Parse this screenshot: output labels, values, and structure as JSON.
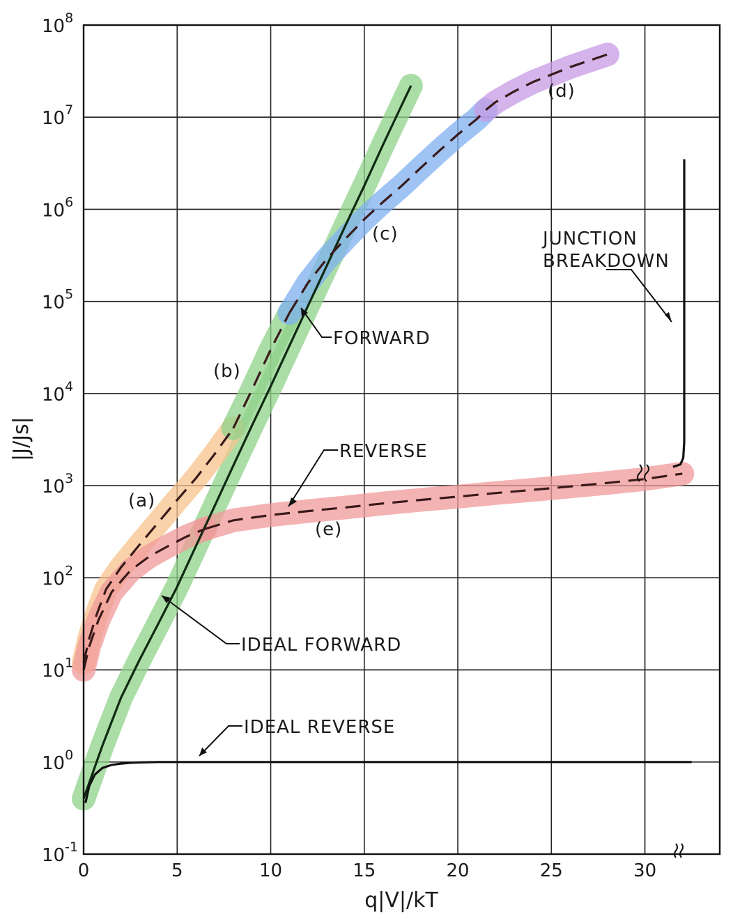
{
  "chart_data": {
    "type": "line",
    "title": "",
    "xlabel": "q|V|/kT",
    "ylabel": "|J/Js|",
    "xlim": [
      0,
      34
    ],
    "ylim": [
      0.1,
      100000000
    ],
    "yscale": "log",
    "grid": true,
    "x_ticks": [
      "0",
      "5",
      "10",
      "15",
      "20",
      "25",
      "30"
    ],
    "y_ticks": [
      {
        "base": "10",
        "exp": "-1",
        "value": 0.1
      },
      {
        "base": "10",
        "exp": "0",
        "value": 1
      },
      {
        "base": "10",
        "exp": "1",
        "value": 10
      },
      {
        "base": "10",
        "exp": "2",
        "value": 100
      },
      {
        "base": "10",
        "exp": "3",
        "value": 1000
      },
      {
        "base": "10",
        "exp": "4",
        "value": 10000
      },
      {
        "base": "10",
        "exp": "5",
        "value": 100000
      },
      {
        "base": "10",
        "exp": "6",
        "value": 1000000
      },
      {
        "base": "10",
        "exp": "7",
        "value": 10000000
      },
      {
        "base": "10",
        "exp": "8",
        "value": 100000000
      }
    ],
    "series": [
      {
        "key": "ideal_forward",
        "name": "IDEAL FORWARD",
        "style": "solid",
        "highlight": "#8fd18a",
        "x": [
          0,
          1,
          2,
          3,
          4,
          5,
          6,
          7,
          8,
          9,
          10,
          11,
          12,
          13,
          14,
          15,
          16,
          17,
          17.5
        ],
        "y": [
          0.4,
          1.5,
          5,
          13,
          32,
          80,
          220,
          600,
          1650,
          4500,
          12000,
          33000,
          90000,
          245000,
          670000,
          1800000,
          5000000,
          13500000,
          22000000
        ]
      },
      {
        "key": "a",
        "name": "(a)",
        "style": "dashed",
        "highlight": "#f7c38d",
        "x": [
          0,
          0.3,
          0.7,
          1.2,
          2,
          3,
          4,
          5,
          6,
          7,
          8
        ],
        "y": [
          12,
          22,
          40,
          75,
          130,
          230,
          400,
          700,
          1200,
          2200,
          4200
        ]
      },
      {
        "key": "b",
        "name": "(b)",
        "style": "dashed",
        "highlight": "#8fd18a",
        "x": [
          8,
          9,
          10,
          11
        ],
        "y": [
          4200,
          11000,
          30000,
          75000
        ]
      },
      {
        "key": "c",
        "name": "(c)",
        "style": "dashed",
        "highlight": "#7fb0f0",
        "x": [
          11,
          12,
          13,
          14,
          15,
          16,
          17,
          18,
          19,
          20,
          21,
          21.5
        ],
        "y": [
          75000,
          160000,
          290000,
          480000,
          780000,
          1200000,
          1800000,
          2800000,
          4300000,
          6500000,
          9500000,
          12000000
        ]
      },
      {
        "key": "d",
        "name": "(d)",
        "style": "dashed",
        "highlight": "#c79be6",
        "x": [
          21.5,
          22,
          23,
          24,
          25,
          26,
          27,
          28
        ],
        "y": [
          12000000,
          14500000,
          19000000,
          24000000,
          29000000,
          35000000,
          41000000,
          48000000
        ]
      },
      {
        "key": "e_low",
        "name": "(e)",
        "style": "dashed",
        "highlight": "#f09a9a",
        "x": [
          0,
          0.3,
          0.8,
          1.5,
          2.5,
          3.5,
          4.5,
          5.5,
          6.5
        ],
        "y": [
          10,
          18,
          35,
          70,
          120,
          170,
          220,
          280,
          340
        ]
      },
      {
        "key": "e",
        "name": "(e)",
        "style": "dashed",
        "highlight": "#f09a9a",
        "x": [
          6.5,
          8,
          10,
          12,
          14,
          16,
          18,
          20,
          22,
          24,
          26,
          28,
          30,
          32
        ],
        "y": [
          340,
          420,
          480,
          530,
          580,
          640,
          700,
          760,
          830,
          900,
          980,
          1070,
          1180,
          1350
        ]
      },
      {
        "key": "ideal_reverse",
        "name": "IDEAL REVERSE",
        "style": "solid",
        "highlight": "",
        "x": [
          0.1,
          0.3,
          0.6,
          1,
          1.5,
          2,
          2.5,
          3,
          4,
          6,
          10,
          15,
          20,
          25,
          30,
          32.5
        ],
        "y": [
          0.36,
          0.55,
          0.73,
          0.86,
          0.93,
          0.96,
          0.98,
          0.99,
          1,
          1,
          1,
          1,
          1,
          1,
          1,
          1
        ]
      },
      {
        "key": "breakdown",
        "name": "JUNCTION BREAKDOWN",
        "style": "solid",
        "highlight": "",
        "x": [
          31.5,
          31.9,
          32.05,
          32.1,
          32.1
        ],
        "y": [
          1600,
          1700,
          2000,
          3000,
          3500000
        ]
      }
    ],
    "annotations": {
      "forward": "FORWARD",
      "reverse": "REVERSE",
      "ideal_forward": "IDEAL FORWARD",
      "ideal_reverse": "IDEAL REVERSE",
      "junction_line1": "JUNCTION",
      "junction_line2": "BREAKDOWN",
      "label_a": "(a)",
      "label_b": "(b)",
      "label_c": "(c)",
      "label_d": "(d)",
      "label_e": "(e)"
    }
  }
}
